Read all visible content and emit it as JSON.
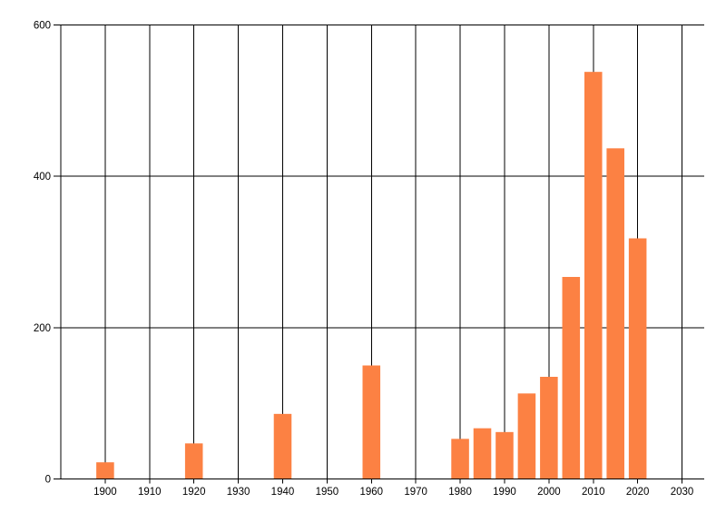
{
  "chart_data": {
    "type": "bar",
    "title": "",
    "xlabel": "",
    "ylabel": "",
    "x": [
      1900,
      1920,
      1940,
      1960,
      1980,
      1985,
      1990,
      1995,
      2000,
      2005,
      2010,
      2015,
      2020
    ],
    "values": [
      22,
      47,
      86,
      150,
      53,
      67,
      62,
      113,
      135,
      267,
      538,
      437,
      318
    ],
    "bar_width_years": 4,
    "xlim": [
      1890,
      2035
    ],
    "ylim": [
      0,
      600
    ],
    "x_ticks": [
      1900,
      1910,
      1920,
      1930,
      1940,
      1950,
      1960,
      1970,
      1980,
      1990,
      2000,
      2010,
      2020,
      2030
    ],
    "y_ticks": [
      0,
      200,
      400,
      600
    ],
    "grid": true,
    "legend_position": "none",
    "bar_color": "#fc8143",
    "axis_color": "#000000",
    "background_color": "#ffffff"
  }
}
